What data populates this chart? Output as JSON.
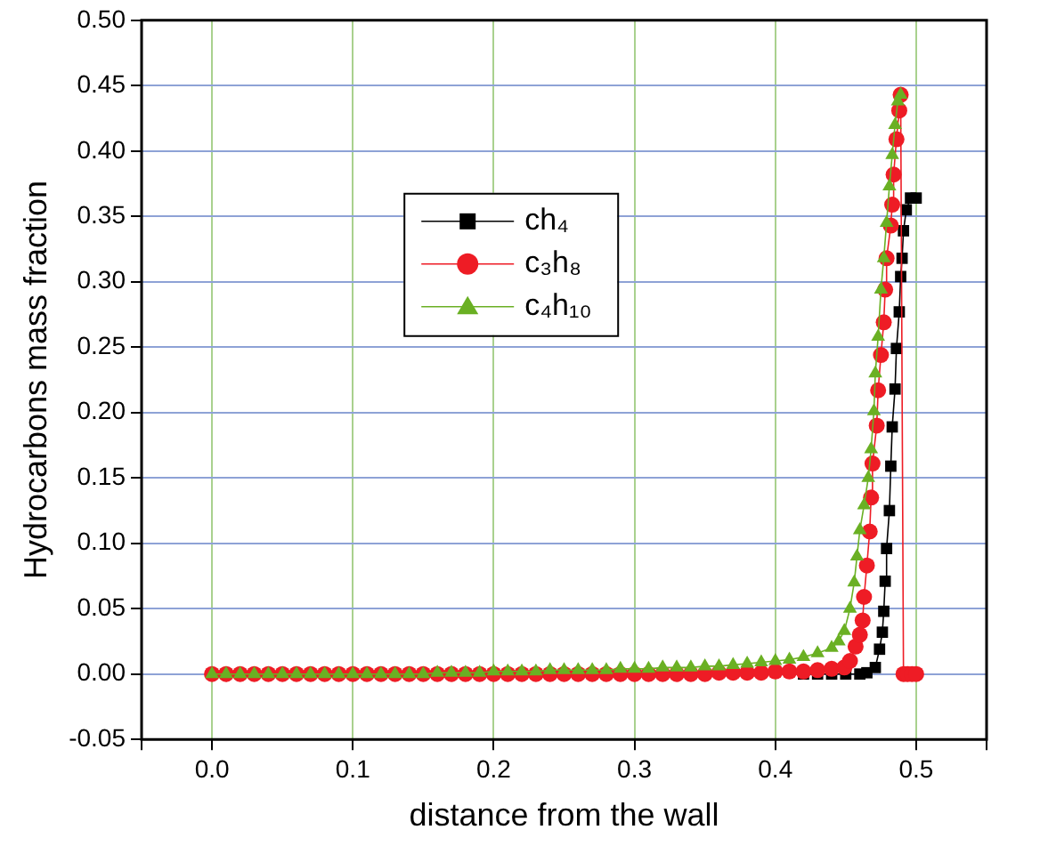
{
  "chart_data": {
    "type": "line",
    "xlabel": "distance from the wall",
    "ylabel": "Hydrocarbons mass fraction",
    "xlim": [
      -0.05,
      0.55
    ],
    "xticks": [
      {
        "value": -0.05,
        "label": null
      },
      {
        "value": 0,
        "label": "0.0"
      },
      0.1,
      0.2,
      0.3,
      0.4,
      0.5,
      {
        "value": 0.55,
        "label": null
      }
    ],
    "ylim": [
      -0.05,
      0.5
    ],
    "yticks": [
      -0.05,
      {
        "value": 0,
        "label": "0.00"
      },
      0.05,
      {
        "value": 0.1,
        "label": "0.10"
      },
      0.15,
      {
        "value": 0.2,
        "label": "0.20"
      },
      0.25,
      {
        "value": 0.3,
        "label": "0.30"
      },
      0.35,
      {
        "value": 0.4,
        "label": "0.40"
      },
      0.45,
      {
        "value": 0.5,
        "label": "0.50"
      }
    ],
    "grid": true,
    "legend": "top left",
    "line_style": "solid",
    "series": [
      {
        "name": "ch₄",
        "color": "#000000",
        "marker": "square",
        "x": [
          0.42,
          0.43,
          0.44,
          0.45,
          0.46,
          0.465,
          0.471,
          0.474,
          0.476,
          0.477,
          0.478,
          0.479,
          0.481,
          0.482,
          0.483,
          0.485,
          0.486,
          0.488,
          0.489,
          0.49,
          0.491,
          0.493,
          0.496,
          0.5
        ],
        "values": [
          0,
          0,
          0,
          0,
          0,
          0.001,
          0.005,
          0.019,
          0.032,
          0.048,
          0.071,
          0.096,
          0.125,
          0.159,
          0.189,
          0.218,
          0.249,
          0.277,
          0.304,
          0.318,
          0.339,
          0.355,
          0.364,
          0.364
        ]
      },
      {
        "name": "c₃h₈",
        "color": "#ee1c25",
        "marker": "circle",
        "x": [
          0,
          0.01,
          0.02,
          0.03,
          0.04,
          0.05,
          0.06,
          0.07,
          0.08,
          0.09,
          0.1,
          0.11,
          0.12,
          0.13,
          0.14,
          0.15,
          0.16,
          0.17,
          0.18,
          0.19,
          0.2,
          0.21,
          0.22,
          0.23,
          0.24,
          0.25,
          0.26,
          0.27,
          0.28,
          0.29,
          0.3,
          0.31,
          0.32,
          0.33,
          0.34,
          0.35,
          0.36,
          0.37,
          0.38,
          0.39,
          0.4,
          0.41,
          0.42,
          0.43,
          0.44,
          0.449,
          0.453,
          0.457,
          0.46,
          0.462,
          0.463,
          0.465,
          0.467,
          0.468,
          0.469,
          0.472,
          0.473,
          0.475,
          0.477,
          0.478,
          0.479,
          0.482,
          0.483,
          0.484,
          0.486,
          0.488,
          0.489,
          0.491,
          0.494,
          0.497,
          0.5
        ],
        "values": [
          0,
          0,
          0,
          0,
          0,
          0,
          0,
          0,
          0,
          0,
          0,
          0,
          0,
          0,
          0,
          0,
          0,
          0,
          0,
          0,
          0,
          0,
          0,
          0,
          0,
          0,
          0,
          0,
          0,
          0,
          0,
          0,
          0,
          0,
          0,
          0,
          0.001,
          0.001,
          0.001,
          0.001,
          0.002,
          0.002,
          0.002,
          0.003,
          0.004,
          0.005,
          0.01,
          0.021,
          0.03,
          0.041,
          0.059,
          0.083,
          0.109,
          0.135,
          0.161,
          0.19,
          0.217,
          0.244,
          0.269,
          0.294,
          0.318,
          0.343,
          0.359,
          0.382,
          0.409,
          0.431,
          0.443,
          0,
          0,
          0,
          0
        ]
      },
      {
        "name": "c₄h₁₀",
        "color": "#6ab023",
        "marker": "triangle",
        "x": [
          0,
          0.01,
          0.02,
          0.03,
          0.04,
          0.05,
          0.06,
          0.07,
          0.08,
          0.09,
          0.1,
          0.11,
          0.12,
          0.13,
          0.14,
          0.15,
          0.16,
          0.17,
          0.18,
          0.19,
          0.2,
          0.21,
          0.22,
          0.23,
          0.24,
          0.25,
          0.26,
          0.27,
          0.28,
          0.29,
          0.3,
          0.31,
          0.32,
          0.33,
          0.34,
          0.35,
          0.36,
          0.37,
          0.38,
          0.39,
          0.4,
          0.41,
          0.42,
          0.43,
          0.44,
          0.445,
          0.449,
          0.453,
          0.456,
          0.458,
          0.46,
          0.463,
          0.466,
          0.468,
          0.47,
          0.471,
          0.473,
          0.475,
          0.477,
          0.479,
          0.481,
          0.483,
          0.485,
          0.487,
          0.489
        ],
        "values": [
          0,
          0,
          0,
          0,
          0,
          0,
          0,
          0,
          0,
          0,
          0,
          0,
          0,
          0,
          0,
          0,
          0.001,
          0.001,
          0.001,
          0.001,
          0.002,
          0.002,
          0.002,
          0.002,
          0.003,
          0.003,
          0.003,
          0.003,
          0.003,
          0.004,
          0.004,
          0.004,
          0.005,
          0.005,
          0.005,
          0.006,
          0.006,
          0.007,
          0.008,
          0.009,
          0.01,
          0.011,
          0.013,
          0.016,
          0.02,
          0.025,
          0.033,
          0.05,
          0.07,
          0.09,
          0.11,
          0.129,
          0.15,
          0.172,
          0.201,
          0.23,
          0.258,
          0.294,
          0.318,
          0.345,
          0.373,
          0.397,
          0.42,
          0.438,
          0.443
        ]
      }
    ]
  }
}
